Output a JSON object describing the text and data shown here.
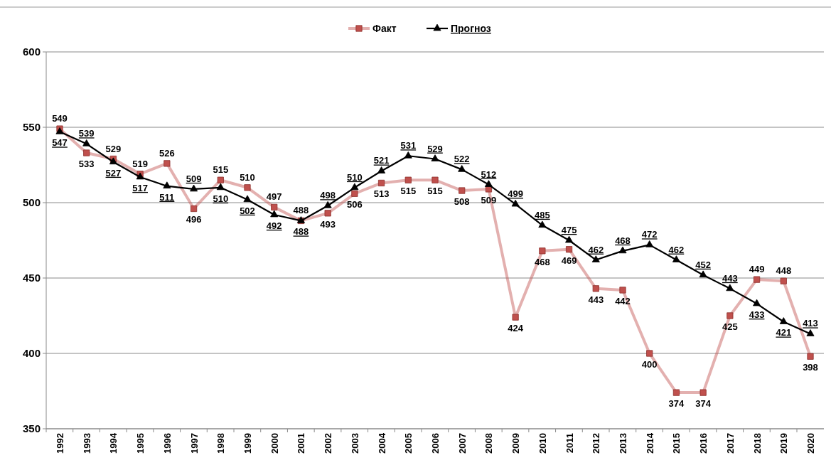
{
  "chart_data": {
    "type": "line",
    "categories": [
      "1992",
      "1993",
      "1994",
      "1995",
      "1996",
      "1997",
      "1998",
      "1999",
      "2000",
      "2001",
      "2002",
      "2003",
      "2004",
      "2005",
      "2006",
      "2007",
      "2008",
      "2009",
      "2010",
      "2011",
      "2012",
      "2013",
      "2014",
      "2015",
      "2016",
      "2017",
      "2018",
      "2019",
      "2020"
    ],
    "series": [
      {
        "name": "Факт",
        "color": "#c0504d",
        "marker": "square",
        "values": [
          549,
          533,
          529,
          519,
          526,
          496,
          515,
          510,
          497,
          488,
          493,
          506,
          513,
          515,
          515,
          508,
          509,
          424,
          468,
          469,
          443,
          442,
          400,
          374,
          374,
          425,
          449,
          448,
          398
        ]
      },
      {
        "name": "Прогноз",
        "color": "#000000",
        "marker": "triangle",
        "values": [
          547,
          539,
          527,
          517,
          511,
          509,
          510,
          502,
          492,
          488,
          498,
          510,
          521,
          531,
          529,
          522,
          512,
          499,
          485,
          475,
          462,
          468,
          472,
          462,
          452,
          443,
          433,
          421,
          413
        ]
      }
    ],
    "ylim": [
      350,
      600
    ],
    "yticks": [
      350,
      400,
      450,
      500,
      550,
      600
    ],
    "grid": "y",
    "legend": "top",
    "data_labels": true
  }
}
